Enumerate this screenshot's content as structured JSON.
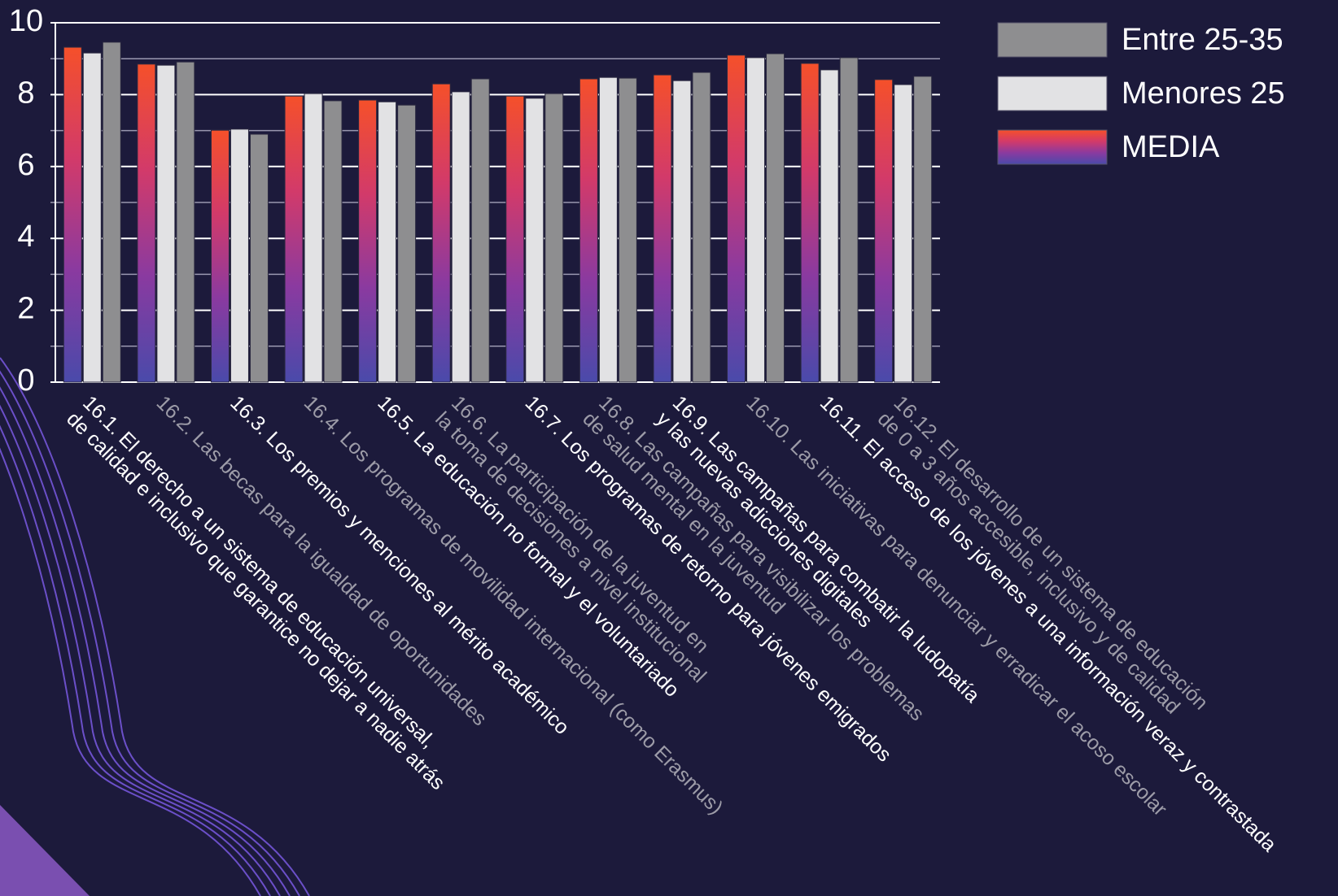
{
  "chart_data": {
    "type": "bar",
    "categories": [
      [
        "16.1. El derecho a un sistema de educación universal,",
        "de calidad e inclusivo que garantice no dejar a nadie atrás"
      ],
      [
        "16.2. Las becas para la igualdad de oportunidades"
      ],
      [
        "16.3. Los premios y menciones al mérito académico"
      ],
      [
        "16.4. Los programas de movilidad internacional (como Erasmus)"
      ],
      [
        "16.5. La educación no formal y el voluntariado"
      ],
      [
        "16.6. La participación de la juventud en",
        "la toma de decisiones a nivel institucional"
      ],
      [
        "16.7. Los programas de retorno para jóvenes emigrados"
      ],
      [
        "16.8. Las campañas para visibilizar los problemas",
        "de salud mental en la juventud"
      ],
      [
        "16.9. Las campañas para combatir la ludopatía",
        "y las nuevas adicciones digitales"
      ],
      [
        "16.10. Las iniciativas para denunciar y erradicar el acoso escolar"
      ],
      [
        "16.11. El acceso de los jóvenes a una información veraz y contrastada"
      ],
      [
        "16.12. El desarrollo de un sistema de educación",
        "de 0 a 3 años accesible, inclusivo y de calidad"
      ]
    ],
    "series": [
      {
        "name": "MEDIA",
        "color": [
          "#f5502a",
          "#d23a6a",
          "#8a3aa0",
          "#4a4aaa"
        ],
        "values": [
          9.32,
          8.85,
          7.01,
          7.96,
          7.85,
          8.3,
          7.96,
          8.44,
          8.55,
          9.1,
          8.87,
          8.42
        ]
      },
      {
        "name": "Menores 25",
        "color": "#e2e2e4",
        "values": [
          9.16,
          8.82,
          7.04,
          8.03,
          7.8,
          8.08,
          7.9,
          8.48,
          8.39,
          9.03,
          8.69,
          8.28
        ]
      },
      {
        "name": "Entre 25-35",
        "color": "#8e8e90",
        "values": [
          9.46,
          8.91,
          6.9,
          7.83,
          7.71,
          8.44,
          8.03,
          8.46,
          8.62,
          9.14,
          9.03,
          8.51
        ]
      }
    ],
    "ylim": [
      0,
      10
    ],
    "yticks": [
      0,
      2,
      4,
      6,
      8,
      10
    ],
    "minor_yticks": [
      1,
      3,
      5,
      7,
      9
    ],
    "grid": true,
    "legend": "right"
  }
}
